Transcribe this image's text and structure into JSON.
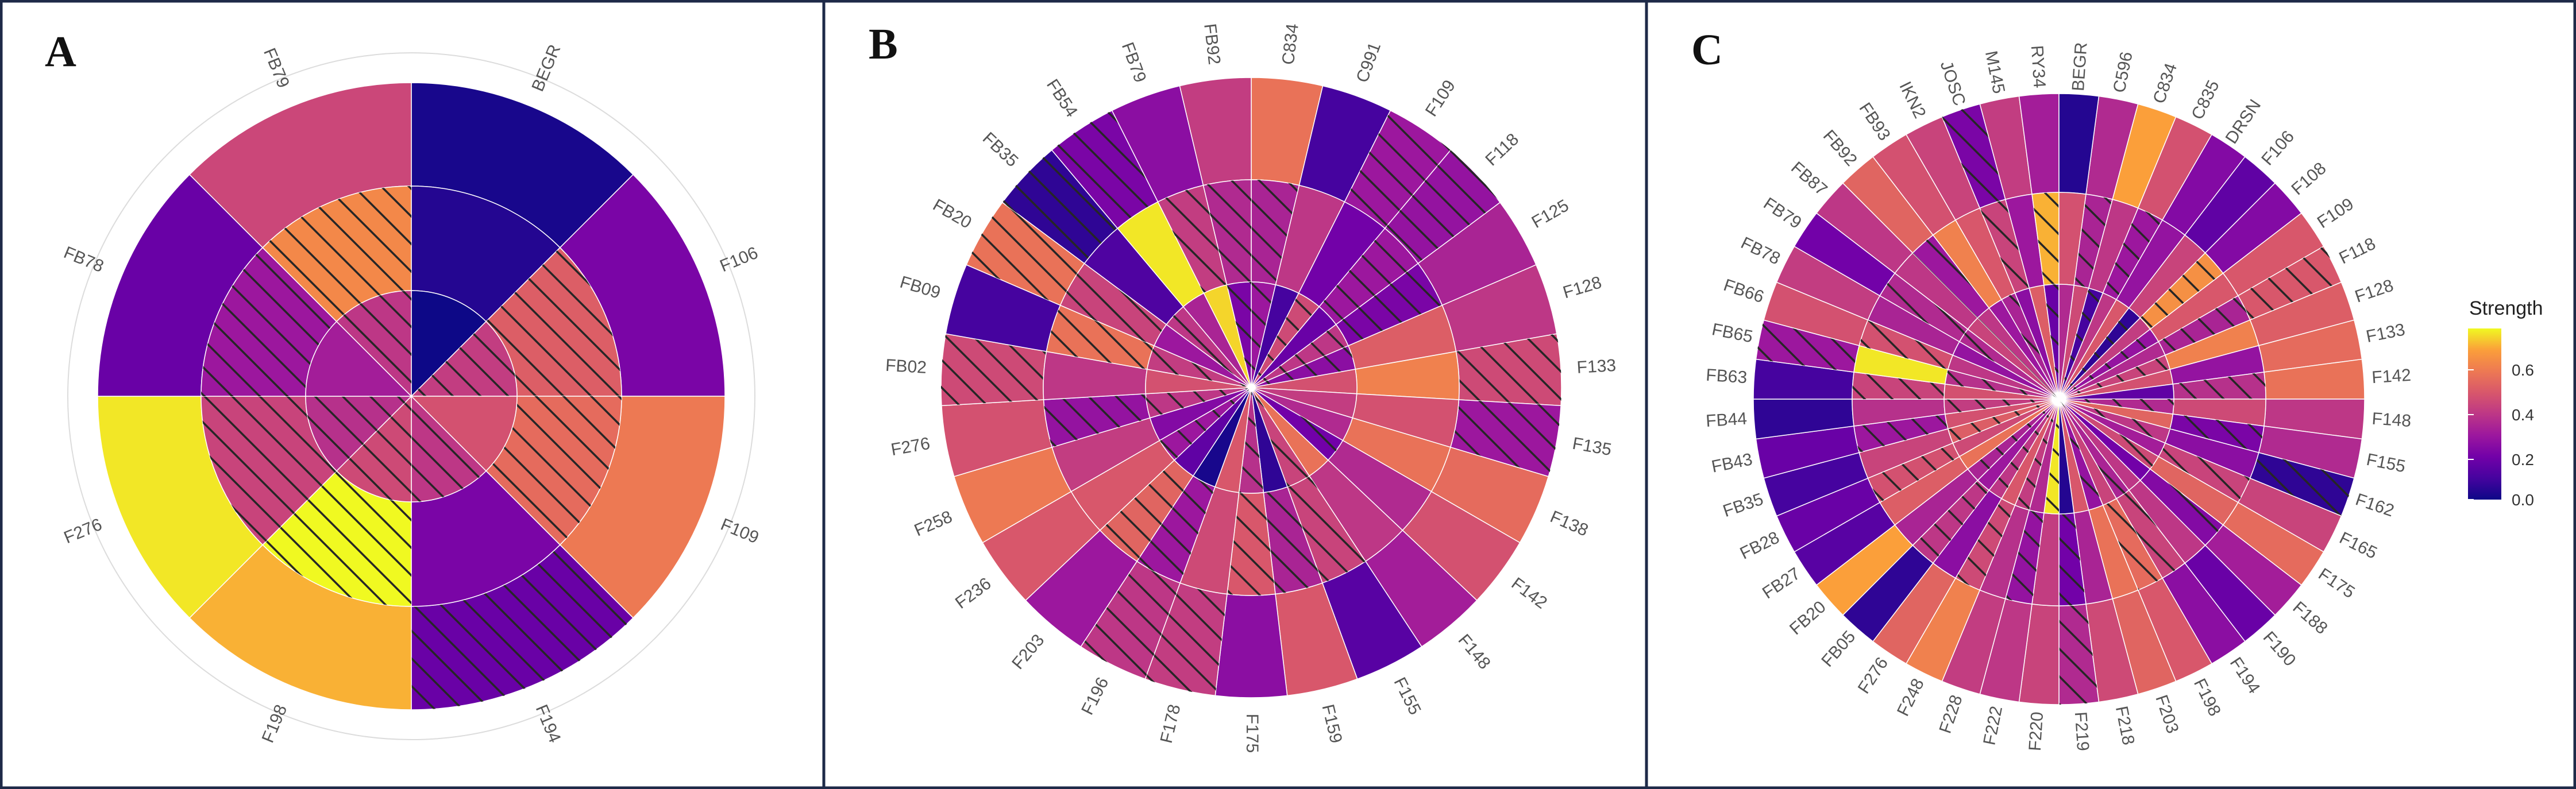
{
  "figure": {
    "legend_title": "Strength",
    "legend_ticks": [
      "0.0",
      "0.2",
      "0.4",
      "0.6"
    ],
    "colors": {
      "frame": "#1e2a48",
      "hatch": "#262626",
      "segment_line": "#ffffff",
      "guide": "#dcdcdc"
    }
  },
  "chart_data": [
    {
      "type": "circular-heatmap",
      "panel": "A",
      "rings": [
        "outer",
        "middle",
        "inner"
      ],
      "categories": [
        "BEGR",
        "F106",
        "F109",
        "F194",
        "F198",
        "F276",
        "FB78",
        "FB79"
      ],
      "values": {
        "outer": [
          0.02,
          0.22,
          0.6,
          0.18,
          0.72,
          0.78,
          0.18,
          0.45
        ],
        "middle": [
          0.04,
          0.52,
          0.56,
          0.22,
          0.8,
          0.44,
          0.3,
          0.64
        ],
        "inner": [
          0.0,
          0.42,
          0.48,
          0.4,
          0.46,
          0.38,
          0.32,
          0.4
        ]
      },
      "hatched": {
        "outer": [
          false,
          false,
          false,
          true,
          false,
          false,
          false,
          false
        ],
        "middle": [
          false,
          true,
          true,
          false,
          true,
          true,
          true,
          true
        ],
        "inner": [
          false,
          true,
          false,
          true,
          true,
          true,
          false,
          true
        ]
      },
      "color_scale": {
        "name": "plasma",
        "limits": [
          0,
          0.8
        ]
      }
    },
    {
      "type": "circular-heatmap",
      "panel": "B",
      "rings": [
        "outer",
        "middle",
        "inner"
      ],
      "categories": [
        "C834",
        "C991",
        "F109",
        "F118",
        "F125",
        "F128",
        "F133",
        "F135",
        "F138",
        "F142",
        "F148",
        "F155",
        "F159",
        "F175",
        "F178",
        "F196",
        "F203",
        "F236",
        "F258",
        "F276",
        "FB02",
        "FB09",
        "FB20",
        "FB35",
        "FB54",
        "FB79",
        "FB92"
      ],
      "values": {
        "outer": [
          0.58,
          0.1,
          0.3,
          0.28,
          0.34,
          0.4,
          0.46,
          0.3,
          0.56,
          0.48,
          0.32,
          0.14,
          0.5,
          0.26,
          0.42,
          0.4,
          0.3,
          0.5,
          0.6,
          0.48,
          0.46,
          0.1,
          0.58,
          0.06,
          0.22,
          0.26,
          0.42
        ],
        "middle": [
          0.34,
          0.4,
          0.2,
          0.3,
          0.22,
          0.52,
          0.62,
          0.48,
          0.58,
          0.36,
          0.4,
          0.44,
          0.34,
          0.5,
          0.46,
          0.3,
          0.54,
          0.5,
          0.42,
          0.28,
          0.4,
          0.58,
          0.44,
          0.12,
          0.78,
          0.42,
          0.36
        ],
        "inner": [
          0.3,
          0.1,
          0.46,
          0.18,
          0.4,
          0.26,
          0.48,
          0.42,
          0.36,
          0.2,
          0.58,
          0.44,
          0.06,
          0.38,
          0.5,
          0.02,
          0.16,
          0.3,
          0.24,
          0.4,
          0.48,
          0.42,
          0.3,
          0.4,
          0.34,
          0.76,
          0.22
        ]
      },
      "hatched": {
        "outer": [
          false,
          false,
          true,
          true,
          false,
          false,
          true,
          true,
          false,
          false,
          false,
          false,
          false,
          false,
          true,
          true,
          false,
          false,
          false,
          false,
          true,
          false,
          true,
          true,
          true,
          false,
          false
        ],
        "middle": [
          true,
          false,
          false,
          true,
          true,
          false,
          false,
          false,
          false,
          false,
          false,
          true,
          true,
          true,
          false,
          true,
          true,
          false,
          false,
          true,
          false,
          true,
          true,
          false,
          false,
          true,
          true
        ],
        "inner": [
          true,
          false,
          true,
          false,
          true,
          true,
          false,
          false,
          false,
          true,
          false,
          true,
          false,
          true,
          false,
          false,
          false,
          true,
          false,
          true,
          false,
          true,
          false,
          true,
          false,
          false,
          true
        ]
      },
      "color_scale": {
        "name": "plasma",
        "limits": [
          0,
          0.8
        ]
      }
    },
    {
      "type": "circular-heatmap",
      "panel": "C",
      "rings": [
        "outer",
        "middle",
        "inner"
      ],
      "categories": [
        "C596",
        "C834",
        "C835",
        "DRSN",
        "F106",
        "F108",
        "F109",
        "F118",
        "F128",
        "F133",
        "F142",
        "F148",
        "F155",
        "F162",
        "F165",
        "F175",
        "F188",
        "F190",
        "F194",
        "F198",
        "F203",
        "F218",
        "F219",
        "F220",
        "F222",
        "F228",
        "F248",
        "F276",
        "FB05",
        "FB20",
        "FB27",
        "FB28",
        "FB35",
        "FB43",
        "FB44",
        "FB63",
        "FB65",
        "FB66",
        "FB78",
        "FB79",
        "FB87",
        "FB92",
        "FB93",
        "IKN2",
        "JOSC",
        "M145",
        "RY34",
        "BEGR"
      ],
      "values": {
        "outer": [
          0.36,
          0.7,
          0.48,
          0.24,
          0.16,
          0.24,
          0.5,
          0.5,
          0.52,
          0.56,
          0.58,
          0.4,
          0.36,
          0.06,
          0.44,
          0.56,
          0.32,
          0.18,
          0.26,
          0.5,
          0.54,
          0.46,
          0.36,
          0.44,
          0.4,
          0.42,
          0.62,
          0.54,
          0.06,
          0.7,
          0.14,
          0.18,
          0.1,
          0.18,
          0.06,
          0.1,
          0.3,
          0.48,
          0.42,
          0.2,
          0.4,
          0.54,
          0.48,
          0.44,
          0.22,
          0.42,
          0.32,
          0.04
        ],
        "middle": [
          0.34,
          0.4,
          0.3,
          0.28,
          0.44,
          0.66,
          0.5,
          0.34,
          0.62,
          0.28,
          0.38,
          0.46,
          0.22,
          0.26,
          0.44,
          0.54,
          0.24,
          0.4,
          0.44,
          0.56,
          0.58,
          0.34,
          0.2,
          0.42,
          0.28,
          0.38,
          0.46,
          0.26,
          0.4,
          0.34,
          0.52,
          0.48,
          0.44,
          0.3,
          0.38,
          0.44,
          0.78,
          0.48,
          0.34,
          0.36,
          0.4,
          0.3,
          0.62,
          0.5,
          0.44,
          0.3,
          0.72,
          0.48
        ],
        "inner": [
          0.46,
          0.1,
          0.4,
          0.5,
          0.06,
          0.42,
          0.28,
          0.36,
          0.44,
          0.48,
          0.16,
          0.36,
          0.54,
          0.4,
          0.32,
          0.46,
          0.2,
          0.4,
          0.34,
          0.44,
          0.28,
          0.5,
          0.04,
          0.78,
          0.36,
          0.42,
          0.5,
          0.4,
          0.3,
          0.34,
          0.58,
          0.46,
          0.52,
          0.48,
          0.42,
          0.48,
          0.38,
          0.4,
          0.28,
          0.36,
          0.44,
          0.4,
          0.3,
          0.34,
          0.26,
          0.52,
          0.18,
          0.36
        ]
      },
      "hatched": {
        "outer": [
          false,
          false,
          false,
          false,
          false,
          false,
          false,
          true,
          false,
          false,
          false,
          false,
          false,
          true,
          false,
          false,
          false,
          false,
          false,
          false,
          false,
          false,
          true,
          false,
          false,
          false,
          false,
          false,
          false,
          false,
          false,
          false,
          false,
          false,
          false,
          false,
          true,
          false,
          false,
          false,
          false,
          false,
          false,
          false,
          true,
          false,
          false,
          false
        ],
        "middle": [
          true,
          false,
          true,
          false,
          false,
          true,
          false,
          true,
          false,
          false,
          true,
          false,
          true,
          false,
          true,
          false,
          true,
          false,
          true,
          true,
          false,
          false,
          true,
          false,
          true,
          false,
          true,
          false,
          true,
          false,
          false,
          true,
          false,
          true,
          false,
          true,
          false,
          true,
          false,
          true,
          false,
          true,
          false,
          false,
          true,
          false,
          true,
          false
        ],
        "inner": [
          false,
          true,
          false,
          false,
          true,
          false,
          true,
          false,
          true,
          false,
          false,
          true,
          false,
          true,
          false,
          true,
          false,
          false,
          true,
          false,
          true,
          false,
          false,
          true,
          false,
          true,
          false,
          true,
          false,
          true,
          false,
          false,
          true,
          false,
          true,
          false,
          true,
          false,
          false,
          true,
          false,
          true,
          false,
          true,
          false,
          false,
          true,
          false
        ]
      },
      "color_scale": {
        "name": "plasma",
        "limits": [
          0,
          0.8
        ]
      }
    }
  ]
}
